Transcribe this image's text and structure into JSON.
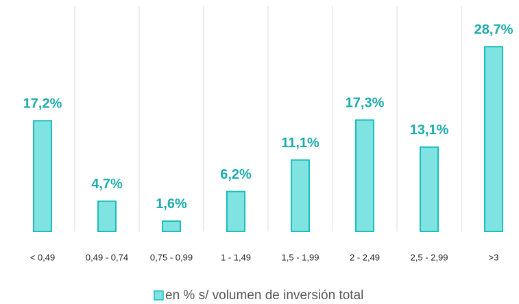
{
  "chart_data": {
    "type": "bar",
    "categories": [
      "< 0,49",
      "0,49 - 0,74",
      "0,75 - 0,99",
      "1 - 1,49",
      "1,5 - 1,99",
      "2 - 2,49",
      "2,5 - 2,99",
      ">3"
    ],
    "series": [
      {
        "name": "en % s/ volumen de inversión total",
        "color": "#7fe3e2",
        "values": [
          17.2,
          4.7,
          1.6,
          6.2,
          11.1,
          17.3,
          13.1,
          28.7
        ],
        "value_labels": [
          "17,2%",
          "4,7%",
          "1,6%",
          "6,2%",
          "11,1%",
          "17,3%",
          "13,1%",
          "28,7%"
        ]
      }
    ],
    "ylim": [
      0,
      35
    ],
    "grid": true
  }
}
